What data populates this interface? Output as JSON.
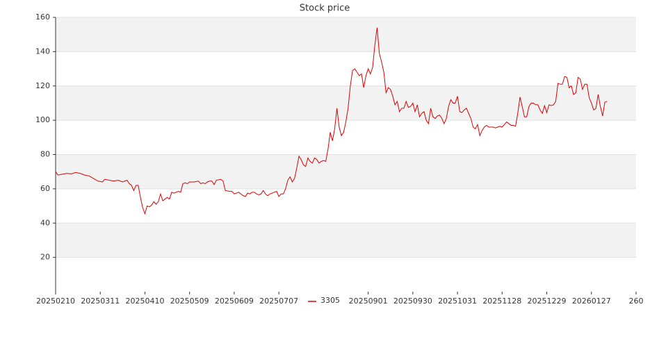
{
  "chart_data": {
    "type": "line",
    "title": "Stock price",
    "x": [
      0,
      1,
      3,
      5,
      7,
      9,
      11,
      13,
      15,
      17,
      19,
      21,
      22,
      24,
      26,
      28,
      30,
      32,
      33,
      34,
      35,
      36,
      37,
      38,
      39,
      40,
      41,
      42,
      43,
      44,
      45,
      46,
      47,
      48,
      49,
      50,
      51,
      52,
      53,
      54,
      55,
      56,
      57,
      58,
      59,
      60,
      62,
      64,
      65,
      66,
      67,
      68,
      69,
      70,
      71,
      72,
      74,
      75,
      76,
      78,
      79,
      80,
      82,
      84,
      85,
      86,
      87,
      88,
      89,
      90,
      91,
      92,
      93,
      94,
      95,
      96,
      97,
      98,
      99,
      100,
      101,
      102,
      103,
      104,
      105,
      106,
      107,
      108,
      109,
      110,
      111,
      112,
      113,
      114,
      115,
      116,
      117,
      118,
      119,
      120,
      121,
      122,
      123,
      124,
      125,
      126,
      127,
      128,
      129,
      130,
      131,
      132,
      133,
      134,
      135,
      136,
      137,
      138,
      139,
      140,
      141,
      142,
      143,
      144,
      145,
      146,
      147,
      148,
      149,
      150,
      151,
      152,
      153,
      154,
      155,
      156,
      157,
      158,
      159,
      160,
      161,
      162,
      163,
      164,
      165,
      166,
      167,
      168,
      169,
      170,
      171,
      172,
      173,
      174,
      175,
      176,
      177,
      178,
      179,
      180,
      181,
      182,
      183,
      184,
      185,
      186,
      187,
      188,
      189,
      190,
      191,
      192,
      193,
      194,
      195,
      196,
      197,
      198,
      199,
      200,
      201,
      202,
      203,
      204,
      205,
      206,
      207,
      208,
      209,
      210,
      211,
      212,
      213,
      214,
      215,
      216,
      217,
      218,
      219,
      220,
      221,
      222,
      223,
      224,
      225,
      226,
      227,
      228,
      229,
      230,
      231,
      232,
      233,
      234,
      235,
      236,
      237,
      238,
      239,
      240,
      241,
      242,
      243,
      244,
      245,
      246,
      247
    ],
    "series": [
      {
        "name": "3305",
        "color": "#dd0000",
        "values": [
          70,
          68,
          68.5,
          69,
          68.7,
          69.5,
          69,
          68,
          67.5,
          66,
          64.5,
          64,
          65.5,
          65,
          64.5,
          65,
          64,
          65,
          63,
          62,
          59,
          62,
          62,
          55,
          49,
          45.5,
          50,
          49.5,
          50.5,
          52.5,
          51,
          52.5,
          57,
          53,
          54,
          55,
          54,
          58,
          57.5,
          58,
          58.5,
          58,
          63,
          63.5,
          63,
          64,
          64,
          64.5,
          63,
          63.5,
          63,
          64,
          64.5,
          64.5,
          62.5,
          65,
          65.5,
          64.5,
          59,
          58.5,
          58.5,
          57,
          58,
          56,
          55.5,
          57.5,
          57,
          58,
          58,
          57,
          56.5,
          57,
          59,
          57,
          56,
          57,
          57.5,
          58,
          58.5,
          55.5,
          57,
          57,
          60,
          65,
          67,
          64,
          66,
          72,
          79,
          77,
          74,
          73,
          78,
          76,
          75,
          78,
          77,
          75,
          76,
          76.5,
          76,
          83,
          93,
          88,
          95,
          107,
          96,
          91,
          93,
          99,
          107,
          120,
          129,
          130,
          128,
          126,
          127,
          119,
          126,
          130,
          127,
          131,
          144,
          154,
          139,
          134,
          128,
          116,
          119,
          118,
          114,
          109,
          111,
          105,
          107,
          107,
          111,
          107.5,
          108,
          110,
          105,
          109,
          102,
          104,
          105,
          100,
          98,
          107,
          102,
          101,
          102.5,
          103,
          101,
          98,
          101,
          108,
          112,
          110,
          110,
          114,
          105,
          104.5,
          106,
          107,
          104,
          101,
          96,
          95,
          97.5,
          91,
          94,
          96,
          97,
          96,
          96,
          96,
          95.5,
          96,
          96.5,
          96,
          97.5,
          99,
          98,
          97,
          97,
          96.5,
          104,
          113.5,
          108,
          102,
          102,
          108,
          110,
          110,
          109,
          109,
          106,
          104,
          108.5,
          104.5,
          109,
          108.5,
          109,
          111,
          121.5,
          121,
          121,
          125.5,
          125,
          119,
          120,
          115,
          116,
          125,
          124,
          118,
          121,
          121,
          113,
          110,
          106,
          107,
          115,
          108,
          102.5,
          110.5,
          111
        ]
      }
    ],
    "xlim": [
      0,
      260
    ],
    "xticks": [
      {
        "value": 0,
        "label": "20250210"
      },
      {
        "value": 20,
        "label": "20250311"
      },
      {
        "value": 40,
        "label": "20250410"
      },
      {
        "value": 60,
        "label": "20250509"
      },
      {
        "value": 80,
        "label": "20250609"
      },
      {
        "value": 100,
        "label": "20250707"
      },
      {
        "value": 140,
        "label": "20250901"
      },
      {
        "value": 160,
        "label": "20250930"
      },
      {
        "value": 180,
        "label": "20251031"
      },
      {
        "value": 200,
        "label": "20251128"
      },
      {
        "value": 220,
        "label": "20251229"
      },
      {
        "value": 240,
        "label": "20260127"
      },
      260
    ],
    "ylim": [
      0,
      160
    ],
    "yticks": [
      20,
      40,
      60,
      80,
      100,
      120,
      140,
      160
    ],
    "grid": true
  }
}
